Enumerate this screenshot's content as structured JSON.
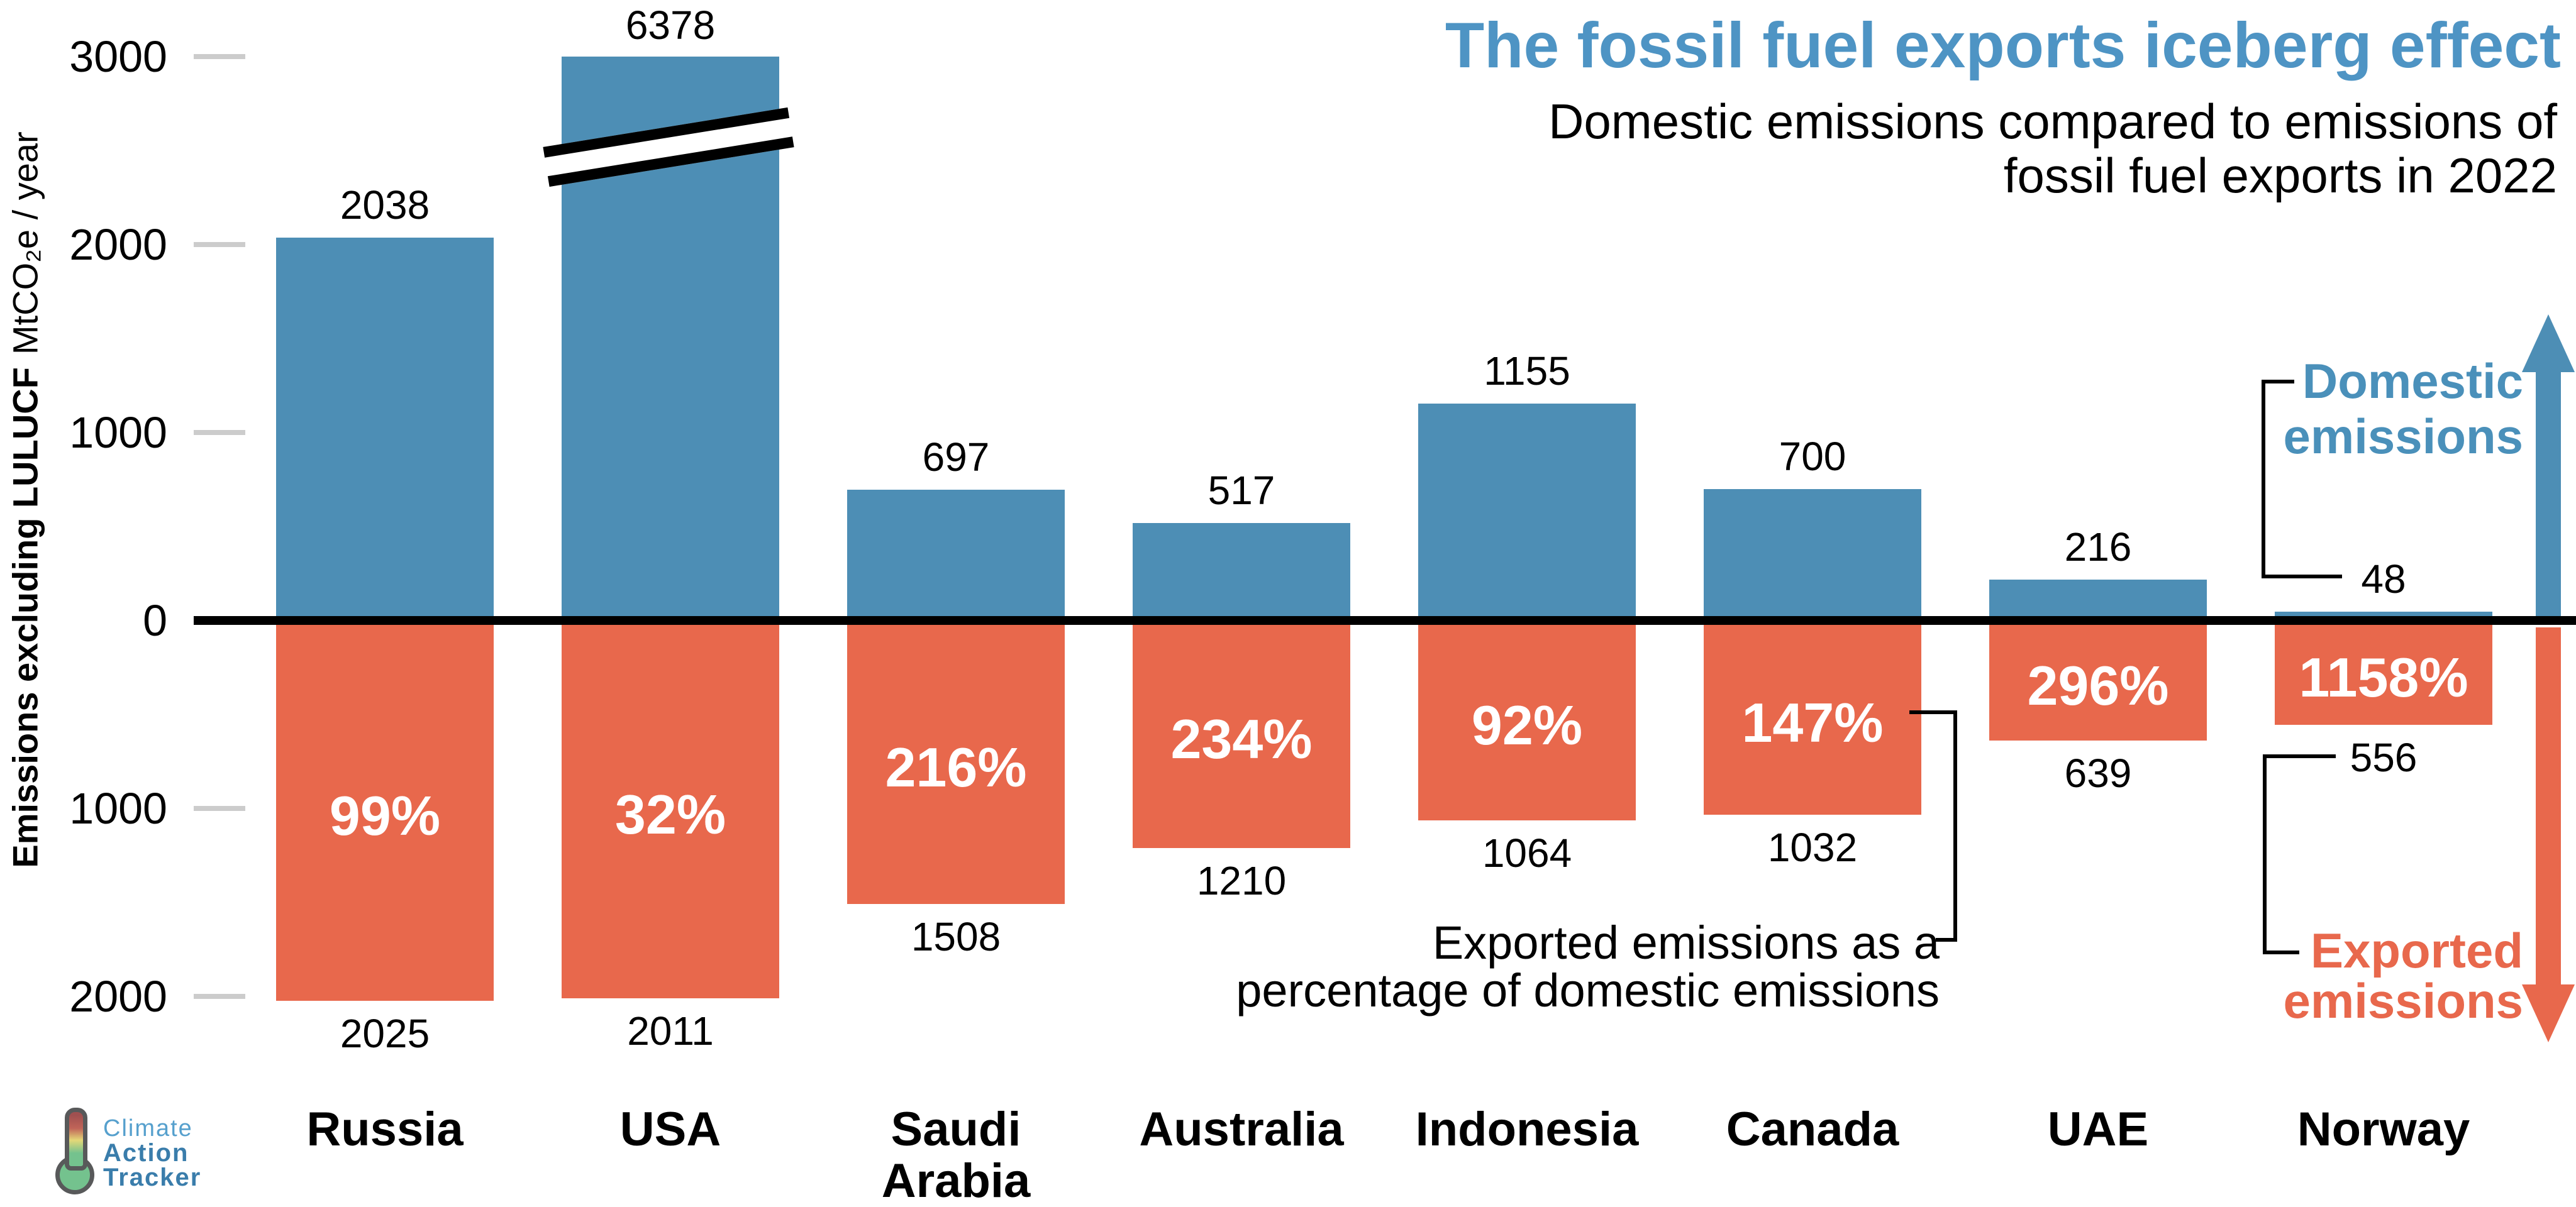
{
  "title": "The fossil fuel exports iceberg effect",
  "subtitle": [
    "Domestic emissions compared to emissions of",
    "fossil fuel exports in 2022"
  ],
  "y_axis": {
    "label_bold": "Emissions excluding LULUCF",
    "label_units": "MtCO₂e / year",
    "ticks": [
      3000,
      2000,
      1000,
      0,
      -1000,
      -2000
    ]
  },
  "legend": {
    "domestic": "Domestic emissions",
    "exported": "Exported emissions"
  },
  "annotation": {
    "line1": "Exported emissions as a",
    "line2": "percentage of domestic emissions"
  },
  "logo": {
    "line1": "Climate",
    "line2": "Action",
    "line3": "Tracker"
  },
  "colors": {
    "domestic_bar": "#4d8eb5",
    "exported_bar": "#e8684c",
    "title_blue": "#4e94c4",
    "legend_blue": "#4a90ba",
    "legend_orange": "#e8684c",
    "tick_gray": "#cccccc",
    "axis_black": "#000000",
    "logo_light_blue": "#56a0cd",
    "logo_dark_blue": "#3a7dab"
  },
  "chart_data": {
    "type": "bar",
    "categories": [
      "Russia",
      "USA",
      "Saudi Arabia",
      "Australia",
      "Indonesia",
      "Canada",
      "UAE",
      "Norway"
    ],
    "series": [
      {
        "name": "Domestic emissions",
        "color": "#4d8eb5",
        "values": [
          2038,
          6378,
          697,
          517,
          1155,
          700,
          216,
          48
        ]
      },
      {
        "name": "Exported emissions",
        "color": "#e8684c",
        "values": [
          2025,
          2011,
          1508,
          1210,
          1064,
          1032,
          639,
          556
        ]
      },
      {
        "name": "Exported emissions as a percentage of domestic emissions",
        "values": [
          "99%",
          "32%",
          "216%",
          "234%",
          "92%",
          "147%",
          "296%",
          "1158%"
        ]
      }
    ],
    "title": "The fossil fuel exports iceberg effect",
    "subtitle": "Domestic emissions compared to emissions of fossil fuel exports in 2022",
    "ylabel": "Emissions excluding LULUCF MtCO₂e / year",
    "yticks_labels": [
      "3000",
      "2000",
      "1000",
      "0",
      "1000",
      "2000"
    ],
    "ylim": [
      -2300,
      3150
    ],
    "grid": "off",
    "legend_position": "right",
    "axis_break": {
      "category": "USA",
      "category_index": 1,
      "drawn_value": 3000
    }
  }
}
